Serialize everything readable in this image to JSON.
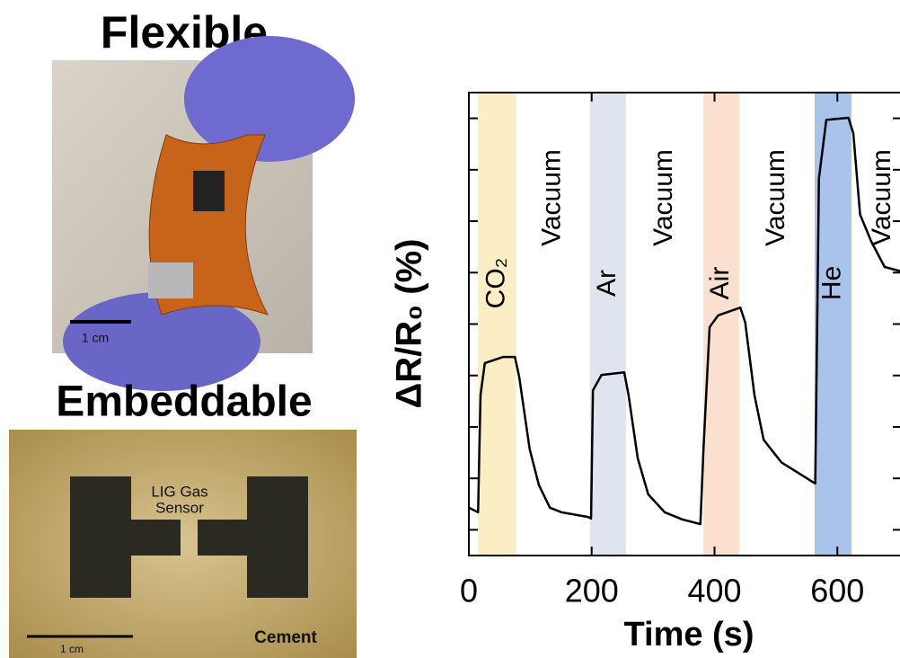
{
  "chart_data": {
    "type": "line",
    "y_label": "ΔR/R₀ (%)",
    "x_label": "Time (s)",
    "xlim": [
      0,
      702
    ],
    "xticks": [
      0,
      200,
      400,
      600
    ],
    "ylim": [
      0,
      9
    ],
    "yticks": [
      0.5,
      1.5,
      2.5,
      3.5,
      4.5,
      5.5,
      6.5,
      7.5,
      8.5
    ],
    "bands": [
      {
        "label": "CO₂",
        "start": 15,
        "end": 77,
        "color": "#fbeec4"
      },
      {
        "label": "Ar",
        "start": 197,
        "end": 256,
        "color": "#dfe4ef"
      },
      {
        "label": "Air",
        "start": 382,
        "end": 440,
        "color": "#fbe0d0"
      },
      {
        "label": "He",
        "start": 563,
        "end": 623,
        "color": "#a9c3ea"
      }
    ],
    "gap_labels": [
      "Vacuum",
      "Vacuum",
      "Vacuum",
      "Vacuum"
    ],
    "series": [
      {
        "color": "#000000",
        "x": [
          0,
          15,
          19,
          26,
          56,
          75,
          82,
          99,
          114,
          132,
          151,
          194,
          199,
          202,
          216,
          253,
          260,
          275,
          292,
          319,
          348,
          377,
          382,
          392,
          406,
          442,
          450,
          465,
          480,
          509,
          564,
          570,
          582,
          618,
          626,
          637,
          655,
          677,
          702
        ],
        "values": [
          0.93,
          0.84,
          3.12,
          3.74,
          3.86,
          3.86,
          3.47,
          2.07,
          1.37,
          0.93,
          0.84,
          0.75,
          0.72,
          3.21,
          3.51,
          3.56,
          3.12,
          1.89,
          1.19,
          0.84,
          0.7,
          0.61,
          2.07,
          4.44,
          4.67,
          4.82,
          4.53,
          3.12,
          2.25,
          1.81,
          1.4,
          7.33,
          8.47,
          8.51,
          8.21,
          6.63,
          6.11,
          5.61,
          5.53
        ]
      }
    ]
  },
  "photos": {
    "flexible": {
      "title": "Flexible",
      "scale": "1 cm"
    },
    "embeddable": {
      "title": "Embeddable",
      "scale": "1 cm",
      "sensor": [
        "LIG Gas",
        "Sensor"
      ],
      "substrate": "Cement"
    }
  }
}
